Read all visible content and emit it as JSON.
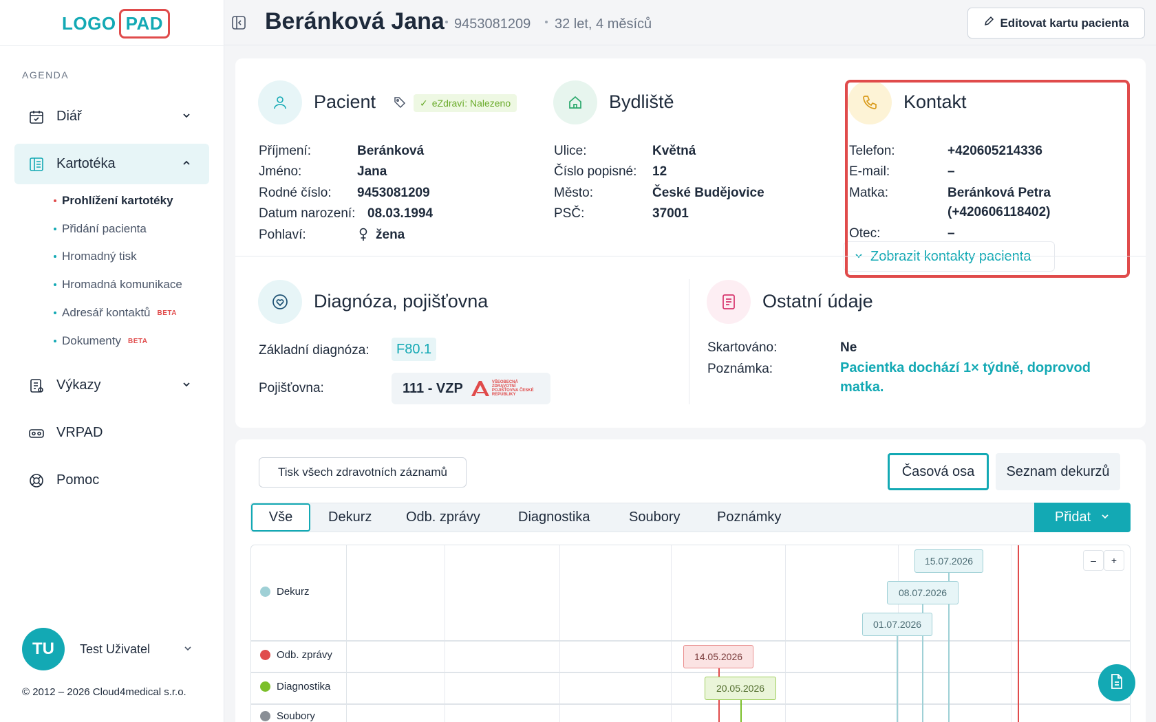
{
  "logo": {
    "part1": "LOGO",
    "part2": "PAD"
  },
  "sidebar": {
    "section": "AGENDA",
    "items": [
      {
        "label": "Diář",
        "icon": "calendar-icon"
      },
      {
        "label": "Kartotéka",
        "icon": "card-file-icon"
      },
      {
        "label": "Výkazy",
        "icon": "report-icon"
      },
      {
        "label": "VRPAD",
        "icon": "vr-headset-icon"
      },
      {
        "label": "Pomoc",
        "icon": "lifebuoy-icon"
      }
    ],
    "sub_items": [
      {
        "label": "Prohlížení kartotéky"
      },
      {
        "label": "Přidání pacienta"
      },
      {
        "label": "Hromadný tisk"
      },
      {
        "label": "Hromadná komunikace"
      },
      {
        "label": "Adresář kontaktů",
        "badge": "BETA"
      },
      {
        "label": "Dokumenty",
        "badge": "BETA"
      }
    ],
    "user": {
      "initials": "TU",
      "name": "Test Uživatel"
    },
    "copyright": "© 2012 – 2026 Cloud4medical s.r.o."
  },
  "header": {
    "name": "Beránková Jana",
    "birth_number": "9453081209",
    "age": "32 let, 4 měsíců",
    "edit_label": "Editovat kartu pacienta"
  },
  "patient": {
    "title": "Pacient",
    "ezdravi": "eZdraví: Nalezeno",
    "rows": [
      {
        "label": "Příjmení:",
        "value": "Beránková"
      },
      {
        "label": "Jméno:",
        "value": "Jana"
      },
      {
        "label": "Rodné číslo:",
        "value": "9453081209"
      },
      {
        "label": "Datum narození:",
        "value": "08.03.1994"
      },
      {
        "label": "Pohlaví:",
        "value": "žena"
      }
    ]
  },
  "address": {
    "title": "Bydliště",
    "rows": [
      {
        "label": "Ulice:",
        "value": "Květná"
      },
      {
        "label": "Číslo popisné:",
        "value": "12"
      },
      {
        "label": "Město:",
        "value": "České Budějovice"
      },
      {
        "label": "PSČ:",
        "value": "37001"
      }
    ]
  },
  "contact": {
    "title": "Kontakt",
    "rows": [
      {
        "label": "Telefon:",
        "value": "+420605214336"
      },
      {
        "label": "E-mail:",
        "value": "–"
      },
      {
        "label": "Matka:",
        "value": "Beránková Petra",
        "value2": "(+420606118402)"
      },
      {
        "label": "Otec:",
        "value": "–"
      }
    ],
    "show_contacts": "Zobrazit kontakty pacienta"
  },
  "diagnosis": {
    "title": "Diagnóza, pojišťovna",
    "diag_label": "Základní diagnóza:",
    "diag_value": "F80.1",
    "insurer_label": "Pojišťovna:",
    "insurer_value": "111 - VZP",
    "insurer_logo_text": "VŠEOBECNÁ ZDRAVOTNÍ POJIŠŤOVNA ČESKÉ REPUBLIKY"
  },
  "other": {
    "title": "Ostatní údaje",
    "shred_label": "Skartováno:",
    "shred_value": "Ne",
    "note_label": "Poznámka:",
    "note_value": "Pacientka dochází 1× týdně, doprovod matka."
  },
  "records": {
    "print_label": "Tisk všech zdravotních záznamů",
    "view_timeline": "Časová osa",
    "view_list": "Seznam dekurzů",
    "tabs": [
      "Vše",
      "Dekurz",
      "Odb. zprávy",
      "Diagnostika",
      "Soubory",
      "Poznámky"
    ],
    "add_label": "Přidat"
  },
  "timeline": {
    "groups": [
      {
        "label": "Dekurz",
        "color": "#9fd0d6"
      },
      {
        "label": "Odb. zprávy",
        "color": "#e04b4b"
      },
      {
        "label": "Diagnostika",
        "color": "#7bbf2a"
      },
      {
        "label": "Soubory",
        "color": "#8a8f96"
      }
    ],
    "items": [
      {
        "date": "15.07.2026",
        "group": "Dekurz"
      },
      {
        "date": "08.07.2026",
        "group": "Dekurz"
      },
      {
        "date": "01.07.2026",
        "group": "Dekurz"
      },
      {
        "date": "14.05.2026",
        "group": "Odb. zprávy"
      },
      {
        "date": "20.05.2026",
        "group": "Diagnostika"
      }
    ],
    "zoom_out": "–",
    "zoom_in": "+"
  },
  "colors": {
    "accent": "#13a9b4",
    "danger": "#e04b4b",
    "success": "#7bbf2a"
  }
}
